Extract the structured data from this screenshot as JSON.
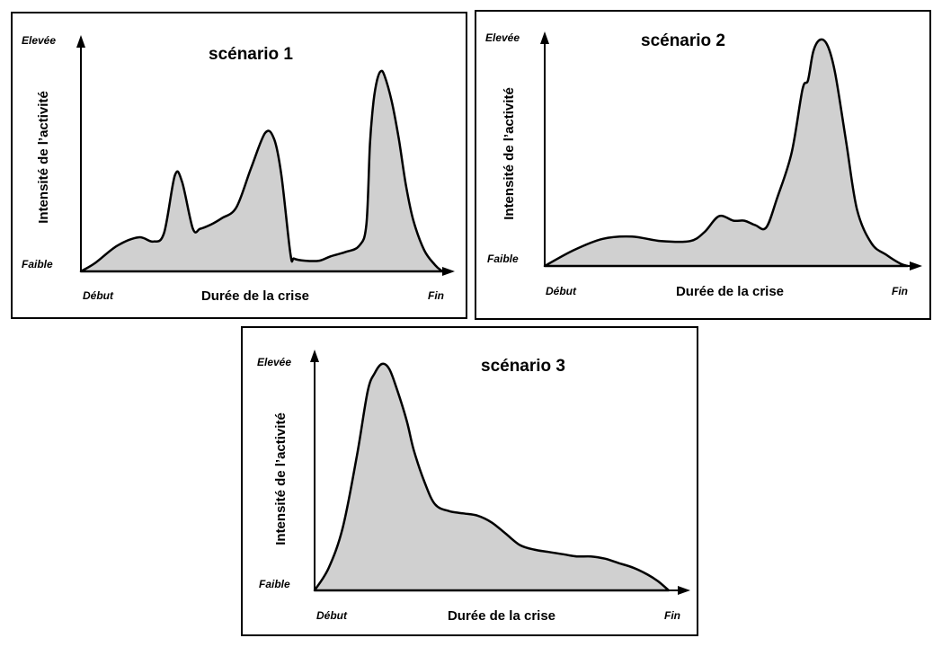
{
  "chart_data": [
    {
      "type": "area",
      "title": "scénario 1",
      "xlabel": "Durée de la crise",
      "ylabel": "Intensité de l’activité",
      "x_tick_labels": [
        "Début",
        "Fin"
      ],
      "y_tick_labels": [
        "Faible",
        "Elevée"
      ],
      "xlim": [
        0,
        100
      ],
      "ylim": [
        0,
        100
      ],
      "grid": false,
      "fill_color": "#d0d0d0",
      "x": [
        0,
        4,
        10,
        16,
        20,
        23,
        26,
        28,
        31,
        33,
        36,
        39,
        43,
        47,
        51,
        53.5,
        55.5,
        58,
        59,
        62,
        66,
        69,
        73,
        77,
        79,
        80,
        81,
        82,
        83,
        84,
        86,
        88,
        90,
        92,
        95,
        98,
        100
      ],
      "values": [
        0,
        4,
        12,
        16,
        14,
        18,
        45,
        42,
        20,
        20,
        22,
        25,
        30,
        48,
        65,
        62,
        45,
        8,
        6,
        5,
        5,
        7,
        9,
        12,
        22,
        60,
        80,
        90,
        94,
        92,
        80,
        62,
        40,
        24,
        10,
        3,
        0
      ]
    },
    {
      "type": "area",
      "title": "scénario 2",
      "xlabel": "Durée de la crise",
      "ylabel": "Intensité de l’activité",
      "x_tick_labels": [
        "Début",
        "Fin"
      ],
      "y_tick_labels": [
        "Faible",
        "Elevée"
      ],
      "xlim": [
        0,
        100
      ],
      "ylim": [
        0,
        100
      ],
      "grid": false,
      "fill_color": "#d0d0d0",
      "x": [
        0,
        8,
        16,
        24,
        32,
        40,
        44,
        48,
        52,
        55,
        58,
        61,
        64,
        68,
        71,
        72.5,
        74,
        76,
        78,
        80,
        83,
        86,
        90,
        94,
        98,
        100
      ],
      "values": [
        0,
        7,
        12,
        13,
        11,
        11,
        15,
        22,
        20,
        20,
        18,
        17,
        30,
        50,
        78,
        82,
        95,
        100,
        97,
        85,
        55,
        25,
        10,
        5,
        1,
        0
      ]
    },
    {
      "type": "area",
      "title": "scénario 3",
      "xlabel": "Durée de la crise",
      "ylabel": "Intensité de l’activité",
      "x_tick_labels": [
        "Début",
        "Fin"
      ],
      "y_tick_labels": [
        "Faible",
        "Elevée"
      ],
      "xlim": [
        0,
        100
      ],
      "ylim": [
        0,
        100
      ],
      "grid": false,
      "fill_color": "#d0d0d0",
      "x": [
        0,
        4,
        8,
        12,
        15,
        17,
        19,
        21,
        23,
        26,
        28,
        31,
        34,
        38,
        42,
        46,
        50,
        54,
        58,
        62,
        66,
        70,
        74,
        78,
        82,
        86,
        90,
        94,
        97,
        100
      ],
      "values": [
        0,
        10,
        28,
        60,
        88,
        96,
        100,
        98,
        90,
        75,
        62,
        48,
        38,
        35,
        34,
        33,
        30,
        25,
        20,
        18,
        17,
        16,
        15,
        15,
        14,
        12,
        10,
        7,
        4,
        0
      ]
    }
  ]
}
